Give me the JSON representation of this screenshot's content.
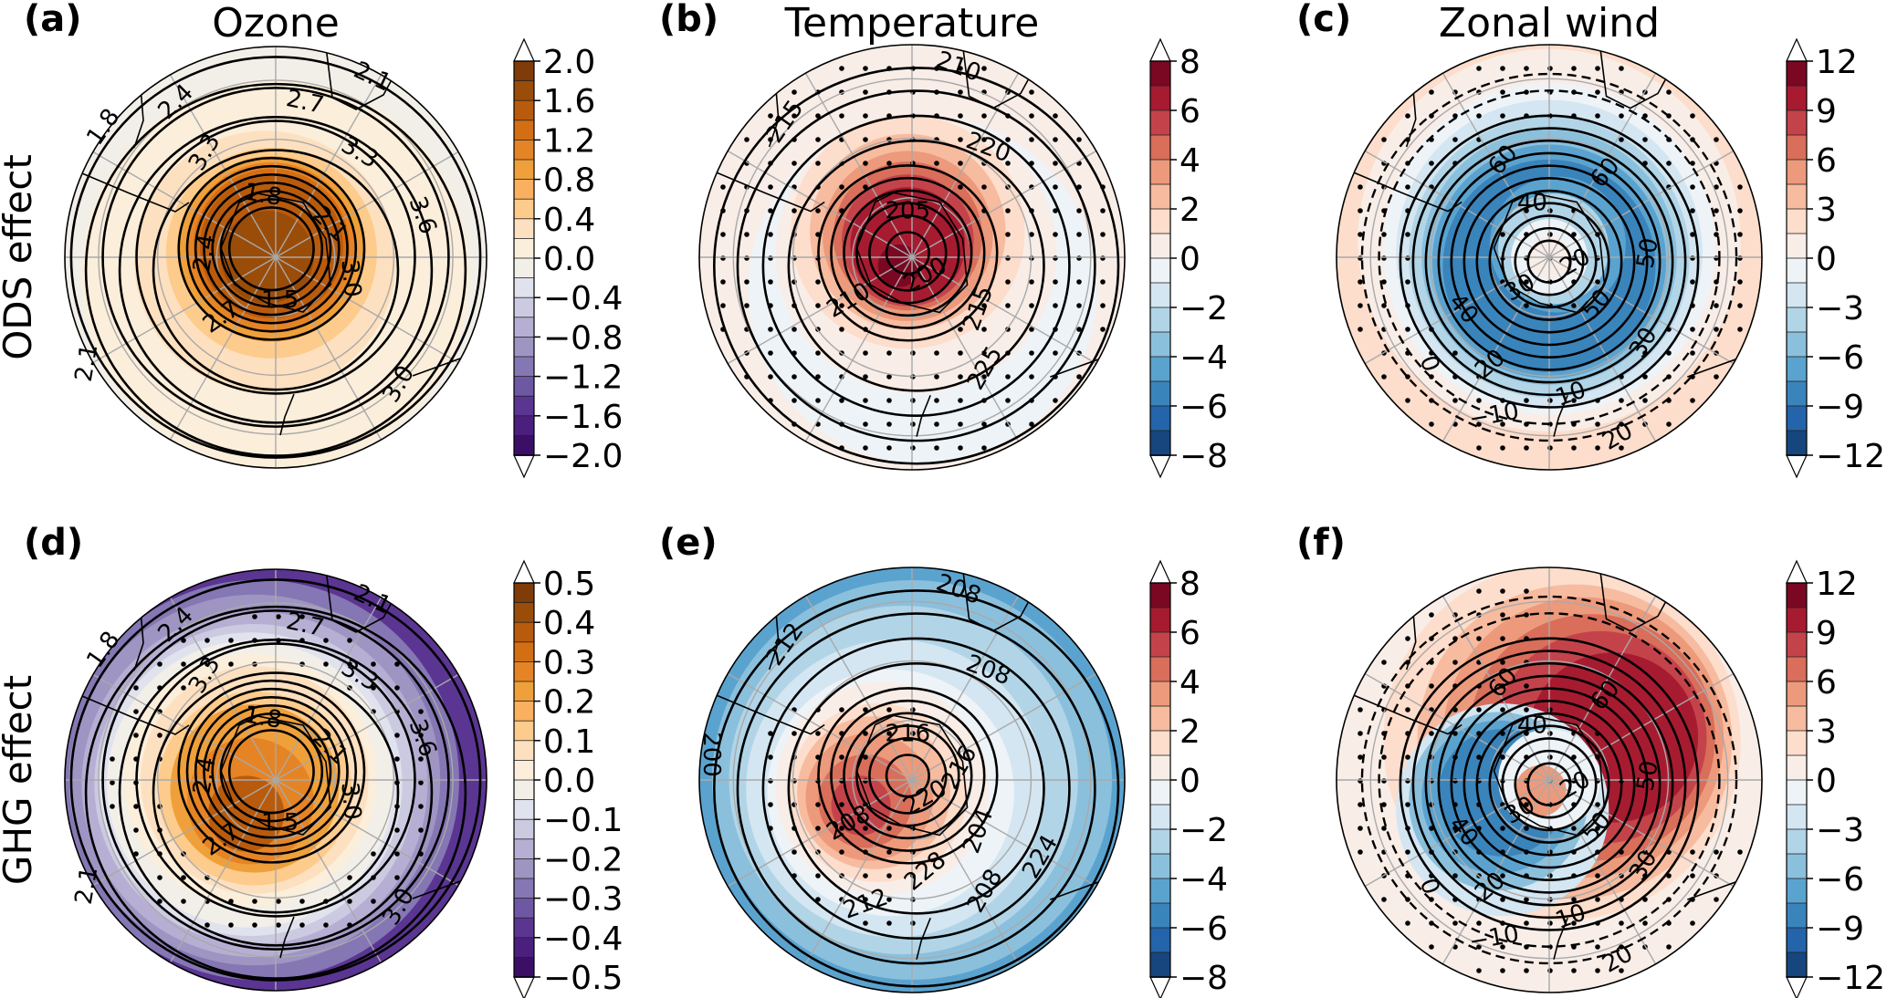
{
  "figure": {
    "columns": [
      {
        "title": "Ozone"
      },
      {
        "title": "Temperature"
      },
      {
        "title": "Zonal wind"
      }
    ],
    "rows": [
      {
        "label": "ODS effect"
      },
      {
        "label": "GHG effect"
      }
    ]
  },
  "chart_data": [
    {
      "type": "heatmap",
      "panel": "(a)",
      "title": "Ozone",
      "row": "ODS effect",
      "projection": "south-polar-stereographic",
      "colormap": "PuOr_r",
      "colorbar": {
        "ticks": [
          "2.0",
          "1.6",
          "1.2",
          "0.8",
          "0.4",
          "0.0",
          "−0.4",
          "−0.8",
          "−1.2",
          "−1.6",
          "−2.0"
        ],
        "range": [
          -2.0,
          2.0
        ],
        "levels": 20,
        "extend": "both"
      },
      "contour_labels": [
        "2.1",
        "2.7",
        "1.8",
        "2.4",
        "3.3",
        "3.3",
        "3.6",
        "1.8",
        "2.1",
        "2.4",
        "2.7",
        "3.0",
        "1.5",
        "3.0",
        "2.1"
      ],
      "contour_variable": "climatological ozone",
      "anomaly_pattern": "positive maximum (~2.0) over the pole decreasing outward to ~0.0 at the edge",
      "stippling": false
    },
    {
      "type": "heatmap",
      "panel": "(b)",
      "title": "Temperature",
      "row": "ODS effect",
      "projection": "south-polar-stereographic",
      "colormap": "RdBu_r",
      "colorbar": {
        "ticks": [
          "8",
          "6",
          "4",
          "2",
          "0",
          "−2",
          "−4",
          "−6",
          "−8"
        ],
        "range": [
          -8,
          8
        ],
        "levels": 16,
        "extend": "both"
      },
      "contour_labels": [
        "210",
        "215",
        "220",
        "205",
        "200",
        "210",
        "215",
        "225"
      ],
      "contour_variable": "climatological temperature",
      "anomaly_pattern": "warming up to ~7 over the pole, weak cooling (~-1) in a mid-latitude band",
      "stippling": true
    },
    {
      "type": "heatmap",
      "panel": "(c)",
      "title": "Zonal wind",
      "row": "ODS effect",
      "projection": "south-polar-stereographic",
      "colormap": "RdBu_r",
      "colorbar": {
        "ticks": [
          "12",
          "9",
          "6",
          "3",
          "0",
          "−3",
          "−6",
          "−9",
          "−12"
        ],
        "range": [
          -12,
          12
        ],
        "levels": 16,
        "extend": "both"
      },
      "contour_labels": [
        "60",
        "60",
        "40",
        "20",
        "30",
        "50",
        "50",
        "40",
        "30",
        "0",
        "20",
        "10",
        "−10",
        "20"
      ],
      "contour_variable": "climatological zonal wind",
      "anomaly_pattern": "weakening up to ~-9 in the polar vortex ring, weak positive (~+2) at the outer edge",
      "stippling": true
    },
    {
      "type": "heatmap",
      "panel": "(d)",
      "title": "Ozone",
      "row": "GHG effect",
      "projection": "south-polar-stereographic",
      "colormap": "PuOr_r",
      "colorbar": {
        "ticks": [
          "0.5",
          "0.4",
          "0.3",
          "0.2",
          "0.1",
          "0.0",
          "−0.1",
          "−0.2",
          "−0.3",
          "−0.4",
          "−0.5"
        ],
        "range": [
          -0.5,
          0.5
        ],
        "levels": 20,
        "extend": "both"
      },
      "contour_labels": [
        "2.1",
        "2.7",
        "1.8",
        "2.4",
        "3.3",
        "3.3",
        "3.6",
        "1.8",
        "2.1",
        "2.4",
        "2.7",
        "3.0",
        "1.5",
        "3.0",
        "2.1"
      ],
      "contour_variable": "climatological ozone",
      "anomaly_pattern": "positive (~0.4) over the pole, negative (~-0.5) at the outer edge strongest to the east",
      "stippling": true
    },
    {
      "type": "heatmap",
      "panel": "(e)",
      "title": "Temperature",
      "row": "GHG effect",
      "projection": "south-polar-stereographic",
      "colormap": "RdBu_r",
      "colorbar": {
        "ticks": [
          "8",
          "6",
          "4",
          "2",
          "0",
          "−2",
          "−4",
          "−6",
          "−8"
        ],
        "range": [
          -8,
          8
        ],
        "levels": 16,
        "extend": "both"
      },
      "contour_labels": [
        "208",
        "212",
        "208",
        "216",
        "220",
        "208",
        "204",
        "208",
        "200",
        "212",
        "216",
        "228",
        "224"
      ],
      "contour_variable": "climatological temperature",
      "anomaly_pattern": "warming up to ~6 off-pole, cooling (~-4 to -6) elsewhere",
      "stippling": true
    },
    {
      "type": "heatmap",
      "panel": "(f)",
      "title": "Zonal wind",
      "row": "GHG effect",
      "projection": "south-polar-stereographic",
      "colormap": "RdBu_r",
      "colorbar": {
        "ticks": [
          "12",
          "9",
          "6",
          "3",
          "0",
          "−3",
          "−6",
          "−9",
          "−12"
        ],
        "range": [
          -12,
          12
        ],
        "levels": 16,
        "extend": "both"
      },
      "contour_labels": [
        "60",
        "60",
        "40",
        "20",
        "30",
        "50",
        "50",
        "40",
        "30",
        "0",
        "20",
        "10",
        "−10",
        "20"
      ],
      "contour_variable": "climatological zonal wind",
      "anomaly_pattern": "strengthening up to ~12 on the eastern flank, weakening (~-9) on the western flank",
      "stippling": true
    }
  ],
  "colors": {
    "puor": [
      "#2d004b",
      "#3c0f66",
      "#4b1f7e",
      "#5b3592",
      "#6e57a3",
      "#8577b3",
      "#9e95c3",
      "#b6afd3",
      "#cccae1",
      "#e0e2ee",
      "#f2efe9",
      "#fbeedb",
      "#fde0bf",
      "#fdcb8c",
      "#f9b05f",
      "#efa03a",
      "#e58425",
      "#d46e13",
      "#b95b0c",
      "#9a4c09",
      "#7f3b08"
    ],
    "rdbu": [
      "#053061",
      "#17467f",
      "#2464aa",
      "#3a84bc",
      "#5ba3cf",
      "#8bc0dd",
      "#b1d5e7",
      "#d4e6f1",
      "#eef3f7",
      "#f8ede7",
      "#fdddcb",
      "#f7bb9f",
      "#ec9a7b",
      "#d96e5a",
      "#c4434a",
      "#a71b30",
      "#7a0822",
      "#67001f"
    ],
    "grid": "#a9a9a9"
  }
}
